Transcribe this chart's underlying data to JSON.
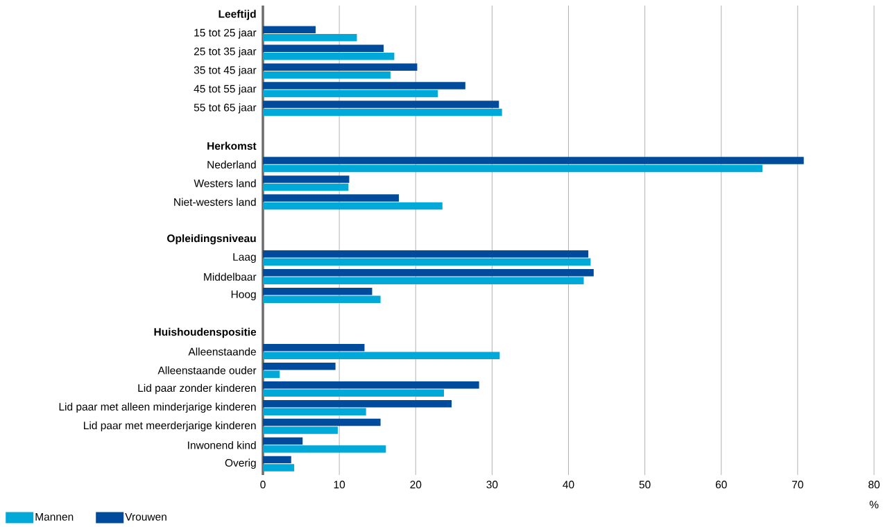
{
  "chart_data": {
    "type": "bar",
    "orientation": "horizontal",
    "categories": [
      "Leeftijd",
      "15 tot 25 jaar",
      "25 tot 35 jaar",
      "35 tot 45 jaar",
      "45 tot 55 jaar",
      "55 tot 65 jaar",
      null,
      "Herkomst",
      "Nederland",
      "Westers land",
      "Niet-westers land",
      null,
      "Opleidingsniveau",
      "Laag",
      "Middelbaar",
      "Hoog",
      null,
      "Huishoudenspositie",
      "Alleenstaande",
      "Alleenstaande ouder",
      "Lid paar zonder kinderen",
      "Lid paar met alleen minderjarige kinderen",
      "Lid paar met meerderjarige kinderen",
      "Inwonend kind",
      "Overig"
    ],
    "series": [
      {
        "name": "Mannen",
        "color": "#00a9d8",
        "values": [
          null,
          12.3,
          17.2,
          16.7,
          22.9,
          31.3,
          null,
          null,
          65.4,
          11.2,
          23.5,
          null,
          null,
          42.9,
          42.0,
          15.4,
          null,
          null,
          31.0,
          2.2,
          23.7,
          13.5,
          9.8,
          16.1,
          4.1
        ]
      },
      {
        "name": "Vrouwen",
        "color": "#004b9b",
        "values": [
          null,
          6.9,
          15.8,
          20.2,
          26.5,
          30.9,
          null,
          null,
          70.8,
          11.3,
          17.8,
          null,
          null,
          42.6,
          43.3,
          14.3,
          null,
          null,
          13.3,
          9.5,
          28.3,
          24.7,
          15.4,
          5.2,
          3.7
        ]
      }
    ],
    "xlim": [
      0,
      80
    ],
    "xticks": [
      0,
      10,
      20,
      30,
      40,
      50,
      60,
      70,
      80
    ],
    "xlabel": "%",
    "grid": "x",
    "legend": "bottom"
  }
}
